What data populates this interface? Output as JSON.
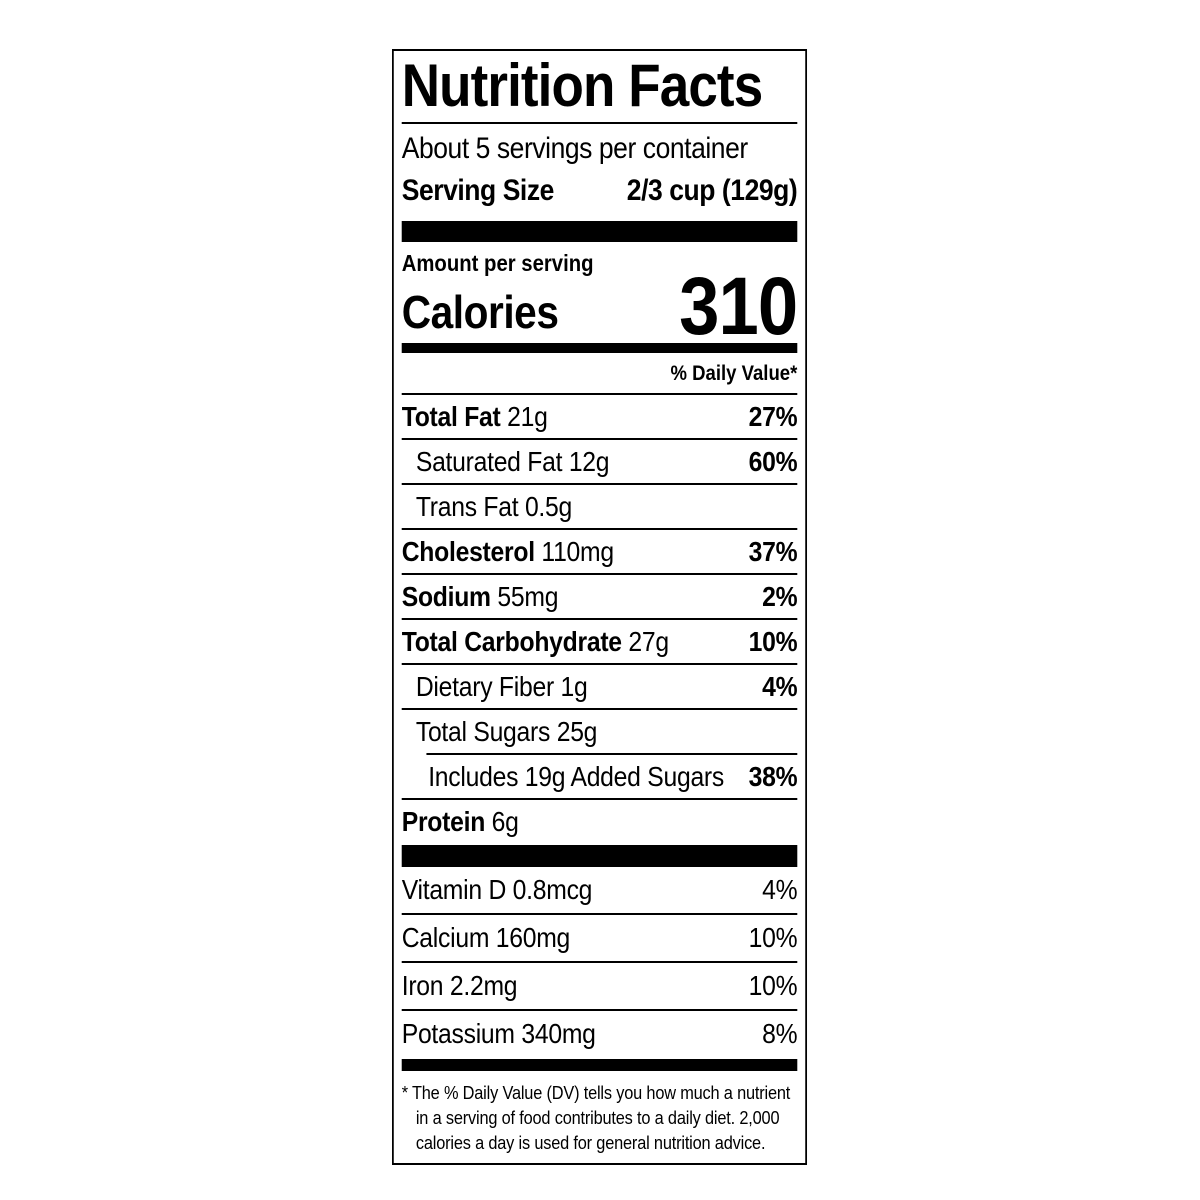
{
  "colors": {
    "text": "#000000",
    "background": "#ffffff",
    "border": "#000000",
    "bar": "#000000"
  },
  "label": {
    "title": "Nutrition Facts",
    "servings_per_container": "About 5 servings per container",
    "serving_size_label": "Serving Size",
    "serving_size_value": "2/3 cup (129g)",
    "amount_per_serving": "Amount per serving",
    "calories_label": "Calories",
    "calories_value": "310",
    "daily_value_header": "% Daily Value*",
    "nutrient_rows": [
      {
        "name": "Total Fat",
        "amount": "21g",
        "dv": "27%",
        "bold_name": true,
        "bold_dv": true,
        "indent": 0,
        "sep_indented": false
      },
      {
        "name": "Saturated Fat",
        "amount": "12g",
        "dv": "60%",
        "bold_name": false,
        "bold_dv": true,
        "indent": 1,
        "sep_indented": false
      },
      {
        "name": "Trans Fat",
        "amount": "0.5g",
        "dv": "",
        "bold_name": false,
        "bold_dv": false,
        "indent": 1,
        "sep_indented": false
      },
      {
        "name": "Cholesterol",
        "amount": "110mg",
        "dv": "37%",
        "bold_name": true,
        "bold_dv": true,
        "indent": 0,
        "sep_indented": false
      },
      {
        "name": "Sodium",
        "amount": "55mg",
        "dv": "2%",
        "bold_name": true,
        "bold_dv": true,
        "indent": 0,
        "sep_indented": false
      },
      {
        "name": "Total Carbohydrate",
        "amount": "27g",
        "dv": "10%",
        "bold_name": true,
        "bold_dv": true,
        "indent": 0,
        "sep_indented": false
      },
      {
        "name": "Dietary Fiber",
        "amount": "1g",
        "dv": "4%",
        "bold_name": false,
        "bold_dv": true,
        "indent": 1,
        "sep_indented": false
      },
      {
        "name": "Total Sugars",
        "amount": "25g",
        "dv": "",
        "bold_name": false,
        "bold_dv": false,
        "indent": 1,
        "sep_indented": false
      },
      {
        "name": "Includes 19g Added Sugars",
        "amount": "",
        "dv": "38%",
        "bold_name": false,
        "bold_dv": true,
        "indent": 2,
        "sep_indented": true
      },
      {
        "name": "Protein",
        "amount": "6g",
        "dv": "",
        "bold_name": true,
        "bold_dv": false,
        "indent": 0,
        "sep_indented": false
      }
    ],
    "vitamin_rows": [
      {
        "name": "Vitamin D",
        "amount": "0.8mcg",
        "dv": "4%"
      },
      {
        "name": "Calcium",
        "amount": "160mg",
        "dv": "10%"
      },
      {
        "name": "Iron",
        "amount": "2.2mg",
        "dv": "10%"
      },
      {
        "name": "Potassium",
        "amount": "340mg",
        "dv": "8%"
      }
    ],
    "footnote": "* The % Daily Value (DV) tells you how much a nutrient in a serving of food contributes to a daily diet. 2,000 calories a day is used for general nutrition advice."
  }
}
